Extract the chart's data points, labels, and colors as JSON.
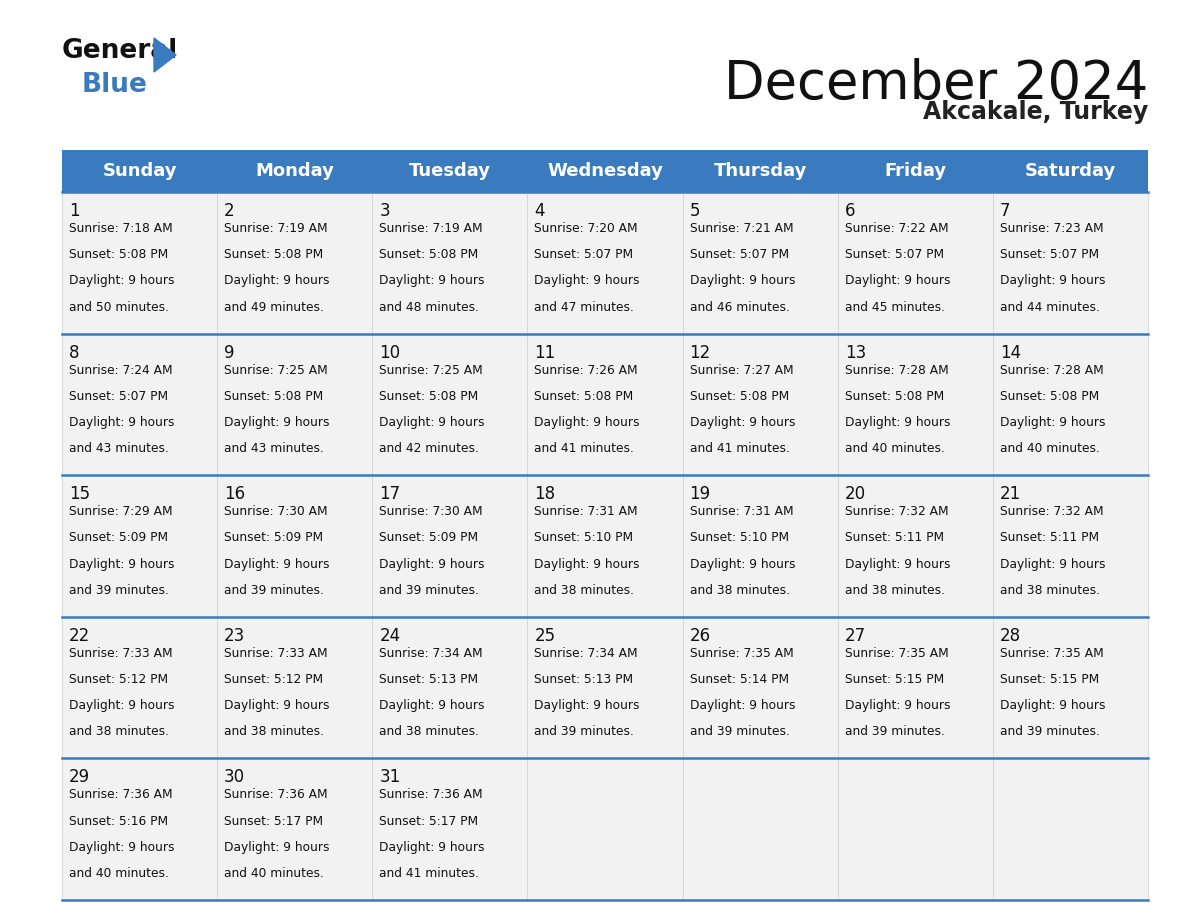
{
  "title": "December 2024",
  "subtitle": "Akcakale, Turkey",
  "header_color": "#3a7bbf",
  "header_text_color": "#ffffff",
  "day_names": [
    "Sunday",
    "Monday",
    "Tuesday",
    "Wednesday",
    "Thursday",
    "Friday",
    "Saturday"
  ],
  "bg_color": "#ffffff",
  "row_line_color": "#3a7bbf",
  "cell_bg": "#f2f2f2",
  "days": [
    {
      "day": 1,
      "col": 0,
      "row": 0,
      "sunrise": "7:18 AM",
      "sunset": "5:08 PM",
      "daylight": "9 hours",
      "daylight2": "and 50 minutes."
    },
    {
      "day": 2,
      "col": 1,
      "row": 0,
      "sunrise": "7:19 AM",
      "sunset": "5:08 PM",
      "daylight": "9 hours",
      "daylight2": "and 49 minutes."
    },
    {
      "day": 3,
      "col": 2,
      "row": 0,
      "sunrise": "7:19 AM",
      "sunset": "5:08 PM",
      "daylight": "9 hours",
      "daylight2": "and 48 minutes."
    },
    {
      "day": 4,
      "col": 3,
      "row": 0,
      "sunrise": "7:20 AM",
      "sunset": "5:07 PM",
      "daylight": "9 hours",
      "daylight2": "and 47 minutes."
    },
    {
      "day": 5,
      "col": 4,
      "row": 0,
      "sunrise": "7:21 AM",
      "sunset": "5:07 PM",
      "daylight": "9 hours",
      "daylight2": "and 46 minutes."
    },
    {
      "day": 6,
      "col": 5,
      "row": 0,
      "sunrise": "7:22 AM",
      "sunset": "5:07 PM",
      "daylight": "9 hours",
      "daylight2": "and 45 minutes."
    },
    {
      "day": 7,
      "col": 6,
      "row": 0,
      "sunrise": "7:23 AM",
      "sunset": "5:07 PM",
      "daylight": "9 hours",
      "daylight2": "and 44 minutes."
    },
    {
      "day": 8,
      "col": 0,
      "row": 1,
      "sunrise": "7:24 AM",
      "sunset": "5:07 PM",
      "daylight": "9 hours",
      "daylight2": "and 43 minutes."
    },
    {
      "day": 9,
      "col": 1,
      "row": 1,
      "sunrise": "7:25 AM",
      "sunset": "5:08 PM",
      "daylight": "9 hours",
      "daylight2": "and 43 minutes."
    },
    {
      "day": 10,
      "col": 2,
      "row": 1,
      "sunrise": "7:25 AM",
      "sunset": "5:08 PM",
      "daylight": "9 hours",
      "daylight2": "and 42 minutes."
    },
    {
      "day": 11,
      "col": 3,
      "row": 1,
      "sunrise": "7:26 AM",
      "sunset": "5:08 PM",
      "daylight": "9 hours",
      "daylight2": "and 41 minutes."
    },
    {
      "day": 12,
      "col": 4,
      "row": 1,
      "sunrise": "7:27 AM",
      "sunset": "5:08 PM",
      "daylight": "9 hours",
      "daylight2": "and 41 minutes."
    },
    {
      "day": 13,
      "col": 5,
      "row": 1,
      "sunrise": "7:28 AM",
      "sunset": "5:08 PM",
      "daylight": "9 hours",
      "daylight2": "and 40 minutes."
    },
    {
      "day": 14,
      "col": 6,
      "row": 1,
      "sunrise": "7:28 AM",
      "sunset": "5:08 PM",
      "daylight": "9 hours",
      "daylight2": "and 40 minutes."
    },
    {
      "day": 15,
      "col": 0,
      "row": 2,
      "sunrise": "7:29 AM",
      "sunset": "5:09 PM",
      "daylight": "9 hours",
      "daylight2": "and 39 minutes."
    },
    {
      "day": 16,
      "col": 1,
      "row": 2,
      "sunrise": "7:30 AM",
      "sunset": "5:09 PM",
      "daylight": "9 hours",
      "daylight2": "and 39 minutes."
    },
    {
      "day": 17,
      "col": 2,
      "row": 2,
      "sunrise": "7:30 AM",
      "sunset": "5:09 PM",
      "daylight": "9 hours",
      "daylight2": "and 39 minutes."
    },
    {
      "day": 18,
      "col": 3,
      "row": 2,
      "sunrise": "7:31 AM",
      "sunset": "5:10 PM",
      "daylight": "9 hours",
      "daylight2": "and 38 minutes."
    },
    {
      "day": 19,
      "col": 4,
      "row": 2,
      "sunrise": "7:31 AM",
      "sunset": "5:10 PM",
      "daylight": "9 hours",
      "daylight2": "and 38 minutes."
    },
    {
      "day": 20,
      "col": 5,
      "row": 2,
      "sunrise": "7:32 AM",
      "sunset": "5:11 PM",
      "daylight": "9 hours",
      "daylight2": "and 38 minutes."
    },
    {
      "day": 21,
      "col": 6,
      "row": 2,
      "sunrise": "7:32 AM",
      "sunset": "5:11 PM",
      "daylight": "9 hours",
      "daylight2": "and 38 minutes."
    },
    {
      "day": 22,
      "col": 0,
      "row": 3,
      "sunrise": "7:33 AM",
      "sunset": "5:12 PM",
      "daylight": "9 hours",
      "daylight2": "and 38 minutes."
    },
    {
      "day": 23,
      "col": 1,
      "row": 3,
      "sunrise": "7:33 AM",
      "sunset": "5:12 PM",
      "daylight": "9 hours",
      "daylight2": "and 38 minutes."
    },
    {
      "day": 24,
      "col": 2,
      "row": 3,
      "sunrise": "7:34 AM",
      "sunset": "5:13 PM",
      "daylight": "9 hours",
      "daylight2": "and 38 minutes."
    },
    {
      "day": 25,
      "col": 3,
      "row": 3,
      "sunrise": "7:34 AM",
      "sunset": "5:13 PM",
      "daylight": "9 hours",
      "daylight2": "and 39 minutes."
    },
    {
      "day": 26,
      "col": 4,
      "row": 3,
      "sunrise": "7:35 AM",
      "sunset": "5:14 PM",
      "daylight": "9 hours",
      "daylight2": "and 39 minutes."
    },
    {
      "day": 27,
      "col": 5,
      "row": 3,
      "sunrise": "7:35 AM",
      "sunset": "5:15 PM",
      "daylight": "9 hours",
      "daylight2": "and 39 minutes."
    },
    {
      "day": 28,
      "col": 6,
      "row": 3,
      "sunrise": "7:35 AM",
      "sunset": "5:15 PM",
      "daylight": "9 hours",
      "daylight2": "and 39 minutes."
    },
    {
      "day": 29,
      "col": 0,
      "row": 4,
      "sunrise": "7:36 AM",
      "sunset": "5:16 PM",
      "daylight": "9 hours",
      "daylight2": "and 40 minutes."
    },
    {
      "day": 30,
      "col": 1,
      "row": 4,
      "sunrise": "7:36 AM",
      "sunset": "5:17 PM",
      "daylight": "9 hours",
      "daylight2": "and 40 minutes."
    },
    {
      "day": 31,
      "col": 2,
      "row": 4,
      "sunrise": "7:36 AM",
      "sunset": "5:17 PM",
      "daylight": "9 hours",
      "daylight2": "and 41 minutes."
    }
  ]
}
